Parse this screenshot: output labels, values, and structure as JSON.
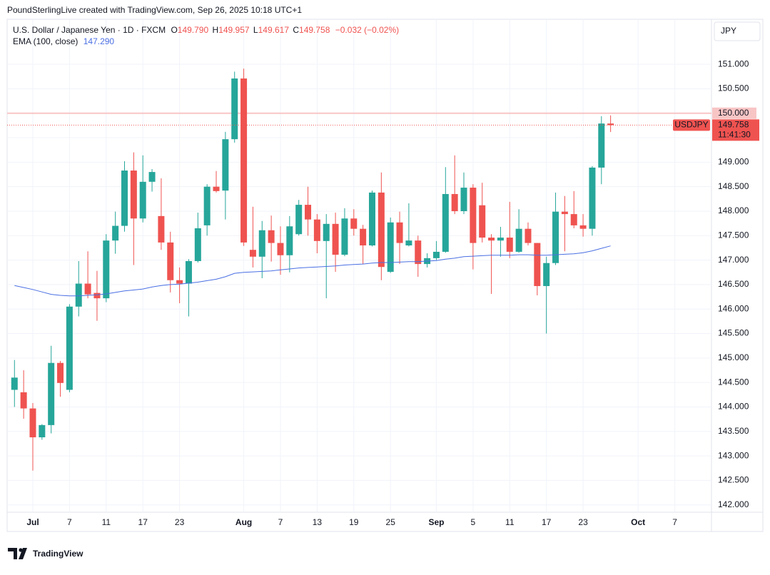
{
  "header": "PoundSterlingLive created with TradingView.com, Sep 26, 2025 10:18 UTC+1",
  "brand": "TradingView",
  "chart_data": {
    "type": "candlestick",
    "title": "U.S. Dollar / Japanese Yen · 1D · FXCM",
    "legend": {
      "o": "O",
      "open": "149.790",
      "h": "H",
      "high": "149.957",
      "l": "L",
      "low": "149.617",
      "c": "C",
      "close": "149.758",
      "change": "−0.032 (−0.02%)"
    },
    "up_color": "#26a69a",
    "down_color": "#ef5350",
    "open": [
      144.35,
      144.3,
      143.97,
      143.38,
      143.63,
      144.9,
      144.35,
      146.05,
      146.52,
      146.33,
      146.22,
      147.4,
      147.7,
      148.83,
      147.85,
      148.6,
      147.9,
      147.36,
      146.59,
      146.52,
      146.98,
      147.71,
      148.5,
      148.42,
      149.47,
      150.71,
      147.21,
      147.07,
      147.61,
      147.35,
      147.1,
      147.53,
      148.13,
      147.83,
      147.39,
      147.74,
      147.11,
      147.85,
      147.64,
      147.3,
      148.38,
      146.76,
      147.77,
      147.3,
      147.4,
      146.92,
      147.04,
      147.17,
      148.35,
      148.0,
      148.48,
      148.12,
      147.46,
      147.4,
      147.46,
      147.17,
      147.64,
      147.35,
      146.47,
      146.94,
      147.99,
      147.94,
      147.71,
      147.64,
      148.89,
      149.79
    ],
    "high": [
      144.96,
      144.75,
      144.08,
      143.65,
      145.25,
      144.94,
      146.1,
      146.98,
      147.18,
      146.78,
      147.53,
      147.99,
      149.02,
      149.2,
      149.14,
      148.86,
      148.67,
      147.58,
      146.85,
      147.02,
      147.97,
      148.55,
      148.82,
      149.62,
      150.85,
      150.91,
      148.09,
      147.8,
      147.91,
      147.69,
      147.9,
      148.23,
      148.5,
      147.94,
      147.94,
      147.97,
      148.06,
      148.04,
      147.72,
      148.42,
      148.79,
      147.87,
      147.99,
      148.16,
      147.5,
      147.14,
      147.39,
      148.9,
      149.14,
      148.79,
      148.55,
      148.58,
      147.53,
      147.68,
      148.19,
      148.04,
      147.77,
      147.35,
      147.07,
      148.38,
      148.31,
      148.41,
      147.94,
      148.92,
      149.94,
      149.957
    ],
    "low": [
      144.0,
      143.76,
      142.7,
      143.33,
      143.46,
      144.21,
      144.3,
      145.85,
      146.22,
      145.76,
      146.14,
      147.13,
      147.58,
      146.9,
      147.77,
      148.4,
      147.21,
      146.34,
      146.12,
      145.85,
      146.95,
      147.5,
      148.38,
      147.83,
      149.4,
      147.29,
      146.85,
      146.63,
      146.97,
      146.7,
      146.75,
      147.5,
      147.5,
      147.14,
      146.22,
      146.76,
      147.08,
      147.5,
      146.92,
      147.28,
      146.59,
      146.74,
      146.92,
      147.28,
      146.66,
      146.85,
      147.0,
      147.15,
      147.94,
      147.94,
      146.81,
      147.36,
      146.31,
      147.07,
      147.04,
      147.15,
      147.3,
      146.28,
      145.5,
      146.9,
      147.18,
      147.65,
      147.48,
      147.5,
      148.55,
      149.617
    ],
    "close": [
      144.6,
      143.97,
      143.38,
      143.63,
      144.9,
      144.49,
      146.05,
      146.52,
      146.3,
      146.22,
      147.4,
      147.7,
      148.83,
      147.85,
      148.6,
      148.8,
      147.36,
      146.59,
      146.52,
      146.98,
      147.65,
      148.5,
      148.41,
      149.47,
      150.71,
      147.36,
      147.07,
      147.61,
      147.35,
      147.1,
      147.69,
      148.13,
      147.83,
      147.39,
      147.74,
      147.11,
      147.85,
      147.64,
      147.3,
      148.38,
      146.86,
      147.77,
      147.35,
      147.4,
      146.92,
      147.04,
      147.17,
      148.35,
      148.0,
      148.48,
      147.35,
      147.46,
      147.4,
      147.46,
      147.17,
      147.64,
      147.35,
      146.47,
      146.94,
      147.99,
      147.94,
      147.71,
      147.64,
      148.89,
      149.79,
      149.758
    ],
    "ema": {
      "name": "EMA (100, close)",
      "value_label": "147.290",
      "color": "#4a6fe3",
      "values": [
        146.48,
        146.44,
        146.4,
        146.35,
        146.3,
        146.28,
        146.27,
        146.27,
        146.28,
        146.29,
        146.31,
        146.34,
        146.37,
        146.39,
        146.41,
        146.45,
        146.48,
        146.5,
        146.51,
        146.53,
        146.55,
        146.58,
        146.61,
        146.66,
        146.73,
        146.75,
        146.76,
        146.77,
        146.78,
        146.8,
        146.82,
        146.84,
        146.85,
        146.86,
        146.87,
        146.88,
        146.9,
        146.91,
        146.92,
        146.94,
        146.95,
        146.95,
        146.96,
        146.97,
        146.97,
        146.98,
        146.99,
        147.02,
        147.04,
        147.07,
        147.08,
        147.09,
        147.1,
        147.1,
        147.1,
        147.11,
        147.11,
        147.1,
        147.1,
        147.11,
        147.12,
        147.13,
        147.15,
        147.19,
        147.24,
        147.29
      ]
    },
    "xlim": [
      -0.8,
      76
    ],
    "xticks": [
      {
        "value": 2,
        "label": "Jul"
      },
      {
        "value": 6,
        "label": "7"
      },
      {
        "value": 10,
        "label": "11"
      },
      {
        "value": 14,
        "label": "17"
      },
      {
        "value": 18,
        "label": "23"
      },
      {
        "value": 25,
        "label": "Aug"
      },
      {
        "value": 29,
        "label": "7"
      },
      {
        "value": 33,
        "label": "13"
      },
      {
        "value": 37,
        "label": "19"
      },
      {
        "value": 41,
        "label": "25"
      },
      {
        "value": 46,
        "label": "Sep"
      },
      {
        "value": 50,
        "label": "5"
      },
      {
        "value": 54,
        "label": "11"
      },
      {
        "value": 58,
        "label": "17"
      },
      {
        "value": 62,
        "label": "23"
      },
      {
        "value": 68,
        "label": "Oct"
      },
      {
        "value": 72,
        "label": "7"
      }
    ],
    "ylim": [
      141.85,
      151.92
    ],
    "yticks": [
      {
        "value": 142,
        "label": "142.000"
      },
      {
        "value": 142.5,
        "label": "142.500"
      },
      {
        "value": 143,
        "label": "143.000"
      },
      {
        "value": 143.5,
        "label": "143.500"
      },
      {
        "value": 144,
        "label": "144.000"
      },
      {
        "value": 144.5,
        "label": "144.500"
      },
      {
        "value": 145,
        "label": "145.000"
      },
      {
        "value": 145.5,
        "label": "145.500"
      },
      {
        "value": 146,
        "label": "146.000"
      },
      {
        "value": 146.5,
        "label": "146.500"
      },
      {
        "value": 147,
        "label": "147.000"
      },
      {
        "value": 147.5,
        "label": "147.500"
      },
      {
        "value": 148,
        "label": "148.000"
      },
      {
        "value": 148.5,
        "label": "148.500"
      },
      {
        "value": 149,
        "label": "149.000"
      },
      {
        "value": 149.5,
        "label": "149.500"
      },
      {
        "value": 150,
        "label": "150.000"
      },
      {
        "value": 150.5,
        "label": "150.500"
      },
      {
        "value": 151,
        "label": "151.000"
      }
    ],
    "grid": true,
    "level": {
      "value": 150,
      "label": "150.000",
      "color": "#f8c5c5"
    },
    "last_price": {
      "symbol": "USDJPY",
      "label": "149.758",
      "countdown": "11:41:30"
    },
    "currency": "JPY"
  }
}
